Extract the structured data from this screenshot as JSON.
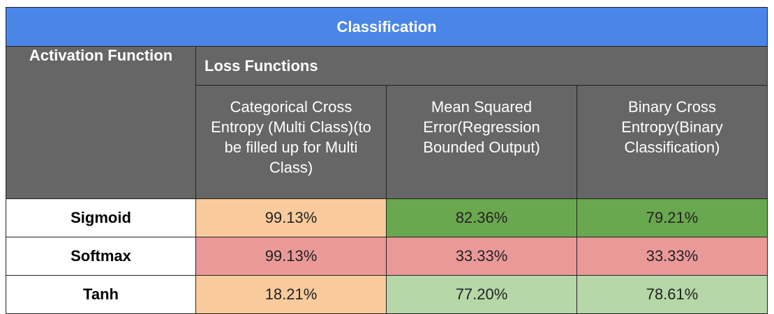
{
  "table": {
    "title": "Classification",
    "activation_header": "Activation Function",
    "loss_header": "Loss Functions",
    "columns": [
      "Categorical Cross Entropy (Multi Class)(to be filled up for Multi Class)",
      "Mean Squared Error(Regression Bounded Output)",
      "Binary Cross Entropy(Binary Classification)"
    ],
    "rows": [
      {
        "label": "Sigmoid",
        "values": [
          "99.13%",
          "82.36%",
          "79.21%"
        ]
      },
      {
        "label": "Softmax",
        "values": [
          "99.13%",
          "33.33%",
          "33.33%"
        ]
      },
      {
        "label": "Tanh",
        "values": [
          "18.21%",
          "77.20%",
          "78.61%"
        ]
      }
    ]
  },
  "colors": {
    "title_bg": "#4a86e8",
    "header_bg": "#666666",
    "peach": "#f9cb9c",
    "dark_green": "#6aa84f",
    "light_red": "#ea9999",
    "light_green": "#b6d7a8"
  },
  "cell_colors": [
    [
      "#f9cb9c",
      "#6aa84f",
      "#6aa84f"
    ],
    [
      "#ea9999",
      "#ea9999",
      "#ea9999"
    ],
    [
      "#f9cb9c",
      "#b6d7a8",
      "#b6d7a8"
    ]
  ]
}
